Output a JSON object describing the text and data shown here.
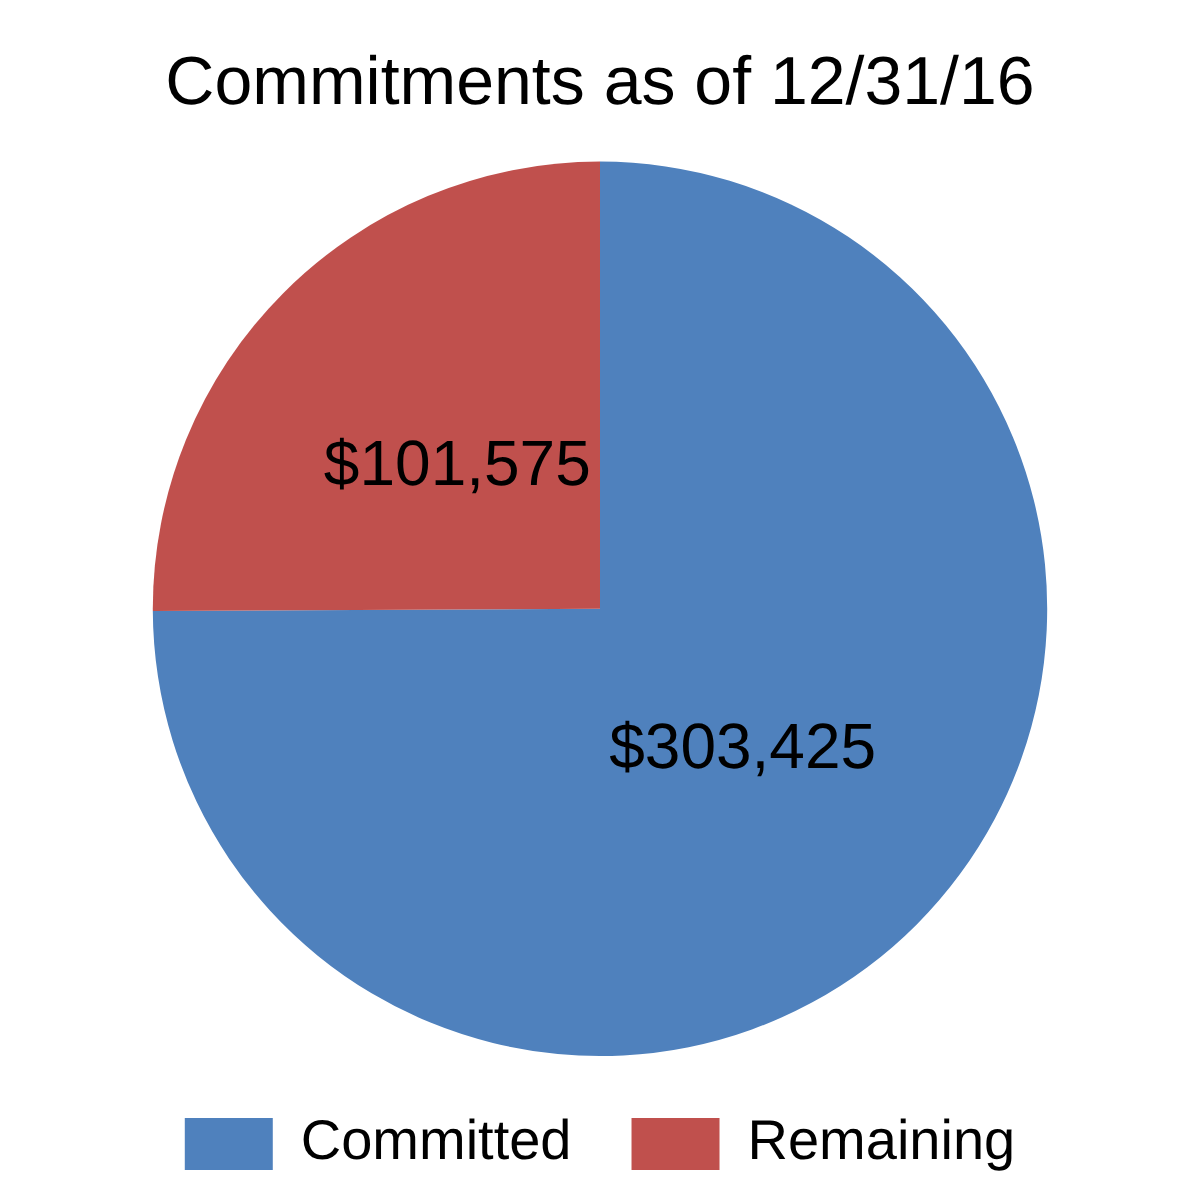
{
  "chart_data": {
    "type": "pie",
    "title": "Commitments as of 12/31/16",
    "categories": [
      "Committed",
      "Remaining"
    ],
    "values": [
      303425,
      101575
    ],
    "colors": [
      "#4f81bd",
      "#c0504d"
    ],
    "value_labels": [
      "$303,425",
      "$101,575"
    ],
    "legend": "bottom"
  }
}
